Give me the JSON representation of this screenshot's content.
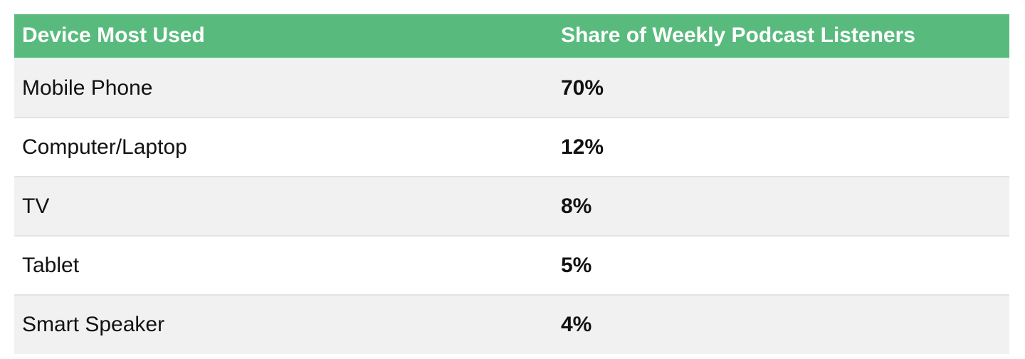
{
  "table": {
    "columns": [
      "Device Most Used",
      "Share of Weekly Podcast Listeners"
    ],
    "rows": [
      {
        "device": "Mobile Phone",
        "share": "70%"
      },
      {
        "device": "Computer/Laptop",
        "share": "12%"
      },
      {
        "device": "TV",
        "share": "8%"
      },
      {
        "device": "Tablet",
        "share": "5%"
      },
      {
        "device": "Smart Speaker",
        "share": "4%"
      }
    ],
    "colors": {
      "header_bg": "#58BB7D",
      "header_text": "#FFFFFF",
      "row_alt_bg": "#F1F1F2",
      "row_bg": "#FFFFFF",
      "separator": "#E3E3E4",
      "header_separator": "#E9F4EC",
      "text": "#121212"
    }
  },
  "chart_data": {
    "type": "table",
    "title": "",
    "columns": [
      "Device Most Used",
      "Share of Weekly Podcast Listeners"
    ],
    "categories": [
      "Mobile Phone",
      "Computer/Laptop",
      "TV",
      "Tablet",
      "Smart Speaker"
    ],
    "values": [
      70,
      12,
      8,
      5,
      4
    ],
    "unit": "%"
  }
}
